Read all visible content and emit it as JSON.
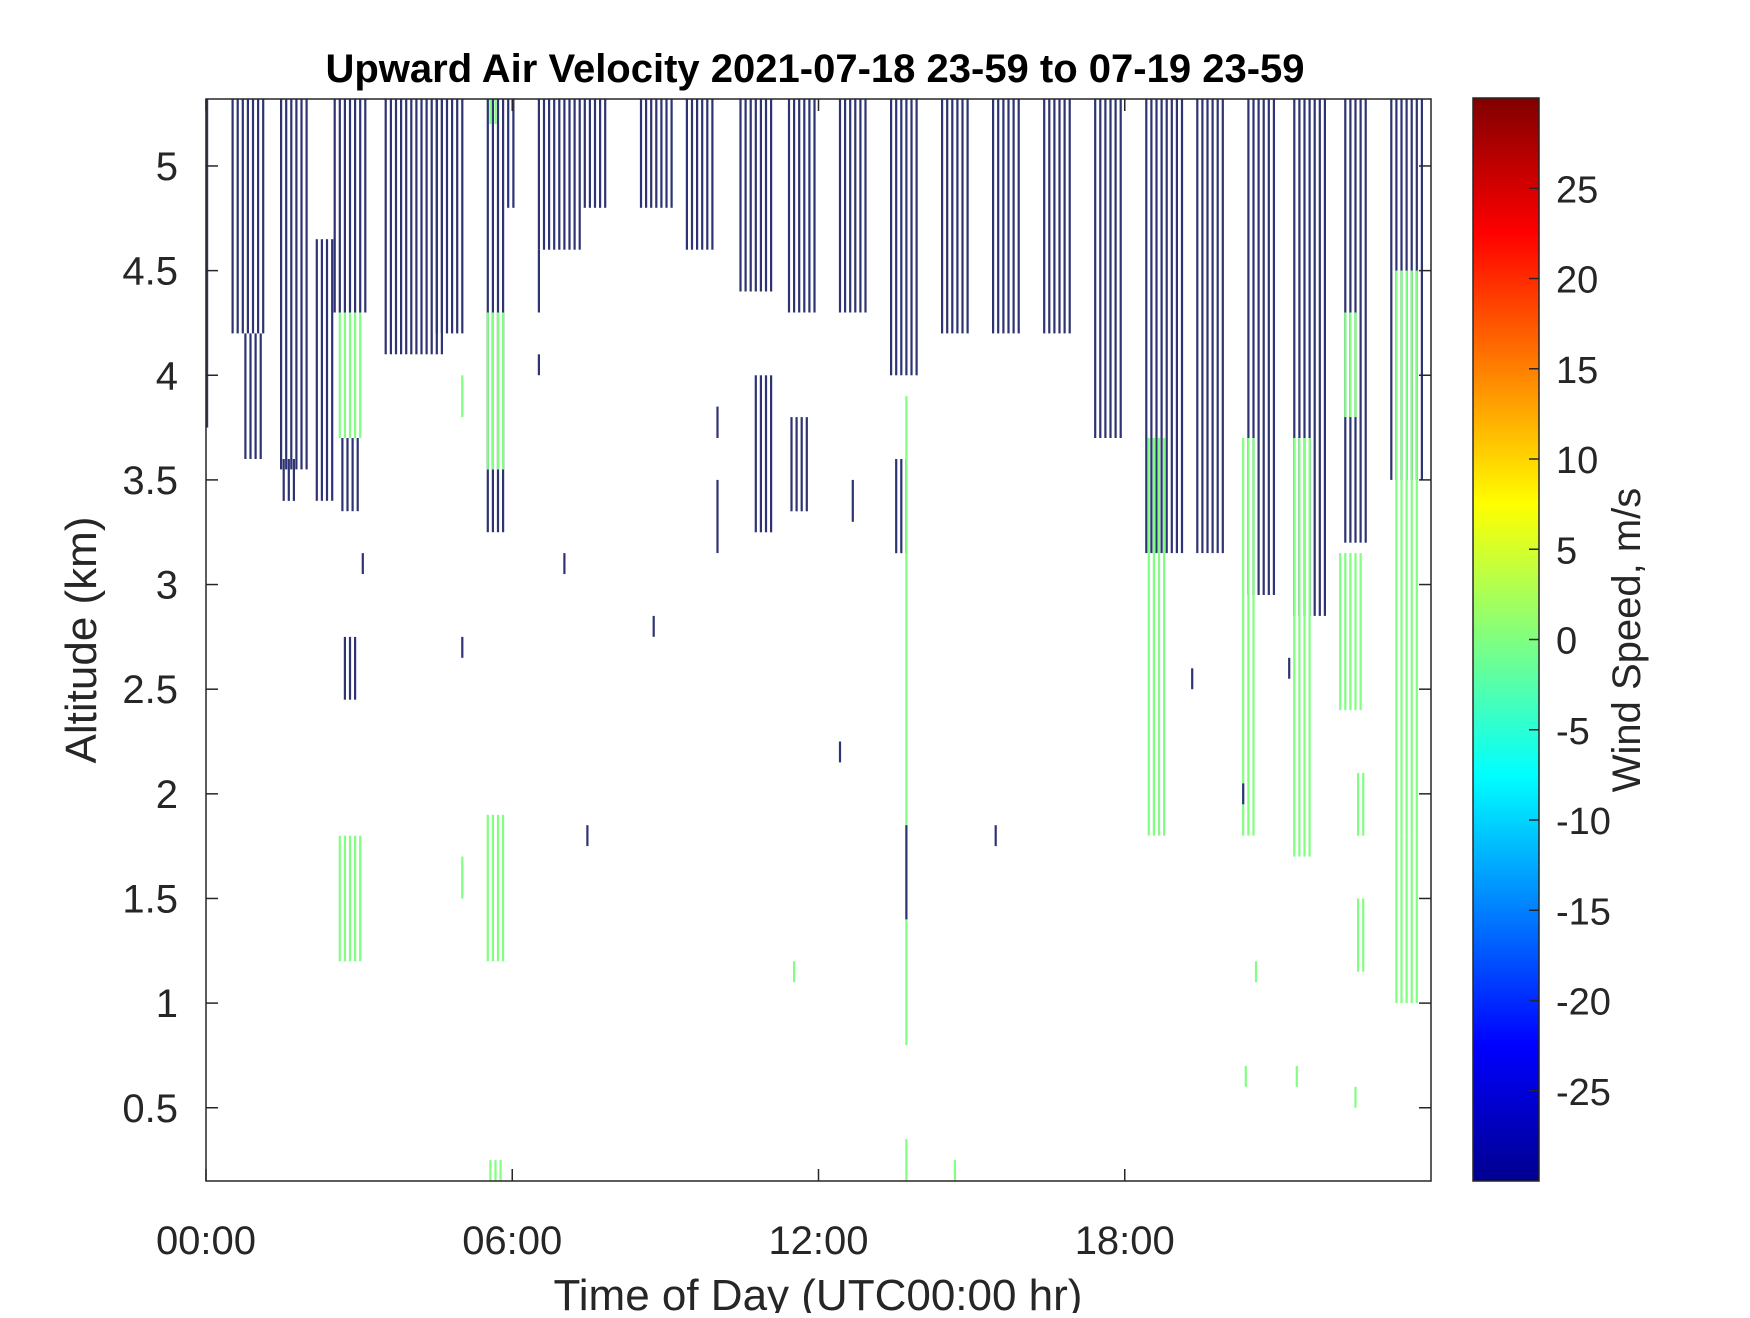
{
  "chart_data": {
    "type": "heatmap",
    "title": "Upward Air Velocity 2021-07-18 23-59 to 07-19 23-59",
    "xlabel": "Time of Day (UTC00:00 hr)",
    "ylabel": "Altitude (km)",
    "xlim": [
      0,
      24
    ],
    "ylim": [
      0.15,
      5.32
    ],
    "x_ticks": [
      {
        "value": 0,
        "label": "00:00"
      },
      {
        "value": 6,
        "label": "06:00"
      },
      {
        "value": 12,
        "label": "12:00"
      },
      {
        "value": 18,
        "label": "18:00"
      }
    ],
    "y_ticks": [
      {
        "value": 0.5,
        "label": "0.5"
      },
      {
        "value": 1,
        "label": "1"
      },
      {
        "value": 1.5,
        "label": "1.5"
      },
      {
        "value": 2,
        "label": "2"
      },
      {
        "value": 2.5,
        "label": "2.5"
      },
      {
        "value": 3,
        "label": "3"
      },
      {
        "value": 3.5,
        "label": "3.5"
      },
      {
        "value": 4,
        "label": "4"
      },
      {
        "value": 4.5,
        "label": "4.5"
      },
      {
        "value": 5,
        "label": "5"
      }
    ],
    "colorbar": {
      "label": "Wind Speed, m/s",
      "range": [
        -30,
        30
      ],
      "colormap": "jet",
      "ticks": [
        {
          "value": -25,
          "label": "-25"
        },
        {
          "value": -20,
          "label": "-20"
        },
        {
          "value": -15,
          "label": "-15"
        },
        {
          "value": -10,
          "label": "-10"
        },
        {
          "value": -5,
          "label": "-5"
        },
        {
          "value": 0,
          "label": "0"
        },
        {
          "value": 5,
          "label": "5"
        },
        {
          "value": 10,
          "label": "10"
        },
        {
          "value": 15,
          "label": "15"
        },
        {
          "value": 20,
          "label": "20"
        },
        {
          "value": 25,
          "label": "25"
        }
      ]
    },
    "grid": false,
    "cell_groups": [
      {
        "t0": 0.0,
        "t1": 0.05,
        "z0": 3.75,
        "z1": 5.32,
        "v": -29,
        "step": 0.1
      },
      {
        "t0": 0.5,
        "t1": 1.1,
        "z0": 4.2,
        "z1": 5.32,
        "v": -29,
        "step": 0.1
      },
      {
        "t0": 0.75,
        "t1": 1.05,
        "z0": 3.6,
        "z1": 4.2,
        "v": -29,
        "step": 0.1
      },
      {
        "t0": 1.45,
        "t1": 2.0,
        "z0": 3.55,
        "z1": 5.32,
        "v": -29,
        "step": 0.1
      },
      {
        "t0": 1.5,
        "t1": 1.75,
        "z0": 3.4,
        "z1": 3.6,
        "v": -29,
        "step": 0.1
      },
      {
        "t0": 2.15,
        "t1": 2.45,
        "z0": 3.4,
        "z1": 4.65,
        "v": -29,
        "step": 0.1
      },
      {
        "t0": 2.5,
        "t1": 3.1,
        "z0": 4.3,
        "z1": 5.32,
        "v": -29,
        "step": 0.1
      },
      {
        "t0": 2.65,
        "t1": 3.0,
        "z0": 3.35,
        "z1": 3.7,
        "v": -29,
        "step": 0.1
      },
      {
        "t0": 2.6,
        "t1": 3.0,
        "z0": 3.7,
        "z1": 4.3,
        "v": 0,
        "step": 0.1
      },
      {
        "t0": 2.6,
        "t1": 3.0,
        "z0": 1.2,
        "z1": 1.8,
        "v": 0,
        "step": 0.1
      },
      {
        "t0": 2.7,
        "t1": 2.9,
        "z0": 2.45,
        "z1": 2.75,
        "v": -29,
        "step": 0.1
      },
      {
        "t0": 3.5,
        "t1": 4.6,
        "z0": 4.1,
        "z1": 5.32,
        "v": -29,
        "step": 0.1
      },
      {
        "t0": 4.5,
        "t1": 5.05,
        "z0": 4.2,
        "z1": 5.32,
        "v": -29,
        "step": 0.1
      },
      {
        "t0": 5.5,
        "t1": 5.85,
        "z0": 3.25,
        "z1": 5.32,
        "v": -29,
        "step": 0.1
      },
      {
        "t0": 5.5,
        "t1": 5.85,
        "z0": 3.55,
        "z1": 4.3,
        "v": 0,
        "step": 0.1
      },
      {
        "t0": 5.5,
        "t1": 5.85,
        "z0": 1.2,
        "z1": 1.9,
        "v": 0,
        "step": 0.1
      },
      {
        "t0": 5.55,
        "t1": 5.7,
        "z0": 5.2,
        "z1": 5.32,
        "v": 0,
        "step": 0.1
      },
      {
        "t0": 5.55,
        "t1": 5.75,
        "z0": 0.15,
        "z1": 0.25,
        "v": 0,
        "step": 0.1
      },
      {
        "t0": 5.9,
        "t1": 6.05,
        "z0": 4.8,
        "z1": 5.32,
        "v": -29,
        "step": 0.1
      },
      {
        "t0": 6.5,
        "t1": 7.3,
        "z0": 4.6,
        "z1": 5.32,
        "v": -29,
        "step": 0.1
      },
      {
        "t0": 7.4,
        "t1": 7.85,
        "z0": 4.8,
        "z1": 5.32,
        "v": -29,
        "step": 0.1
      },
      {
        "t0": 8.5,
        "t1": 9.1,
        "z0": 4.8,
        "z1": 5.32,
        "v": -29,
        "step": 0.1
      },
      {
        "t0": 9.4,
        "t1": 9.95,
        "z0": 4.6,
        "z1": 5.32,
        "v": -29,
        "step": 0.1
      },
      {
        "t0": 10.45,
        "t1": 11.1,
        "z0": 4.4,
        "z1": 5.32,
        "v": -29,
        "step": 0.1
      },
      {
        "t0": 10.75,
        "t1": 11.05,
        "z0": 3.25,
        "z1": 4.0,
        "v": -29,
        "step": 0.1
      },
      {
        "t0": 11.4,
        "t1": 11.95,
        "z0": 4.3,
        "z1": 5.32,
        "v": -29,
        "step": 0.1
      },
      {
        "t0": 11.45,
        "t1": 11.75,
        "z0": 3.35,
        "z1": 3.8,
        "v": -29,
        "step": 0.1
      },
      {
        "t0": 12.4,
        "t1": 12.95,
        "z0": 4.3,
        "z1": 5.32,
        "v": -29,
        "step": 0.1
      },
      {
        "t0": 13.4,
        "t1": 13.95,
        "z0": 4.0,
        "z1": 5.32,
        "v": -29,
        "step": 0.1
      },
      {
        "t0": 13.5,
        "t1": 13.75,
        "z0": 3.15,
        "z1": 3.6,
        "v": -29,
        "step": 0.1
      },
      {
        "t0": 14.4,
        "t1": 14.95,
        "z0": 4.2,
        "z1": 5.32,
        "v": -29,
        "step": 0.1
      },
      {
        "t0": 15.4,
        "t1": 15.95,
        "z0": 4.2,
        "z1": 5.32,
        "v": -29,
        "step": 0.1
      },
      {
        "t0": 16.4,
        "t1": 16.95,
        "z0": 4.2,
        "z1": 5.32,
        "v": -29,
        "step": 0.1
      },
      {
        "t0": 17.4,
        "t1": 17.95,
        "z0": 3.7,
        "z1": 5.32,
        "v": -29,
        "step": 0.1
      },
      {
        "t0": 18.4,
        "t1": 19.1,
        "z0": 3.15,
        "z1": 5.32,
        "v": -29,
        "step": 0.1
      },
      {
        "t0": 18.45,
        "t1": 18.75,
        "z0": 1.8,
        "z1": 3.7,
        "v": 0,
        "step": 0.1
      },
      {
        "t0": 19.4,
        "t1": 19.95,
        "z0": 3.15,
        "z1": 5.32,
        "v": -29,
        "step": 0.1
      },
      {
        "t0": 20.4,
        "t1": 20.95,
        "z0": 2.95,
        "z1": 5.32,
        "v": -29,
        "step": 0.1
      },
      {
        "t0": 20.3,
        "t1": 20.55,
        "z0": 1.8,
        "z1": 3.7,
        "v": 0,
        "step": 0.1
      },
      {
        "t0": 21.3,
        "t1": 21.95,
        "z0": 2.85,
        "z1": 5.32,
        "v": -29,
        "step": 0.1
      },
      {
        "t0": 21.3,
        "t1": 21.65,
        "z0": 1.7,
        "z1": 3.7,
        "v": 0,
        "step": 0.1
      },
      {
        "t0": 22.3,
        "t1": 22.75,
        "z0": 3.2,
        "z1": 5.32,
        "v": -29,
        "step": 0.1
      },
      {
        "t0": 22.2,
        "t1": 22.6,
        "z0": 2.4,
        "z1": 3.15,
        "v": 0,
        "step": 0.1
      },
      {
        "t0": 22.3,
        "t1": 22.55,
        "z0": 3.8,
        "z1": 4.3,
        "v": 0,
        "step": 0.1
      },
      {
        "t0": 22.55,
        "t1": 22.65,
        "z0": 1.8,
        "z1": 2.1,
        "v": 0,
        "step": 0.1
      },
      {
        "t0": 22.55,
        "t1": 22.7,
        "z0": 1.15,
        "z1": 1.5,
        "v": 0,
        "step": 0.1
      },
      {
        "t0": 23.2,
        "t1": 23.85,
        "z0": 3.5,
        "z1": 5.32,
        "v": -29,
        "step": 0.1
      },
      {
        "t0": 23.3,
        "t1": 23.7,
        "z0": 1.8,
        "z1": 4.5,
        "v": 0,
        "step": 0.1
      },
      {
        "t0": 23.3,
        "t1": 23.7,
        "z0": 1.0,
        "z1": 1.8,
        "v": 0,
        "step": 0.1
      },
      {
        "t0": 13.7,
        "t1": 13.76,
        "z0": 0.8,
        "z1": 3.9,
        "v": 0,
        "step": 0.1
      },
      {
        "t0": 13.7,
        "t1": 13.76,
        "z0": 0.15,
        "z1": 0.35,
        "v": 0,
        "step": 0.1
      },
      {
        "t0": 14.65,
        "t1": 14.7,
        "z0": 0.15,
        "z1": 0.25,
        "v": 0,
        "step": 0.1
      },
      {
        "t0": 5.0,
        "t1": 5.05,
        "z0": 1.5,
        "z1": 1.7,
        "v": 0,
        "step": 0.1
      },
      {
        "t0": 5.0,
        "t1": 5.05,
        "z0": 3.8,
        "z1": 4.0,
        "v": 0,
        "step": 0.1
      },
      {
        "t0": 11.5,
        "t1": 11.55,
        "z0": 1.1,
        "z1": 1.2,
        "v": 0,
        "step": 0.1
      },
      {
        "t0": 20.55,
        "t1": 20.6,
        "z0": 1.1,
        "z1": 1.2,
        "v": 0,
        "step": 0.1
      },
      {
        "t0": 21.35,
        "t1": 21.4,
        "z0": 0.6,
        "z1": 0.7,
        "v": 0,
        "step": 0.1
      },
      {
        "t0": 20.35,
        "t1": 20.4,
        "z0": 0.6,
        "z1": 0.7,
        "v": 0,
        "step": 0.1
      },
      {
        "t0": 22.5,
        "t1": 22.55,
        "z0": 0.5,
        "z1": 0.6,
        "v": 0,
        "step": 0.1
      },
      {
        "t0": 3.05,
        "t1": 3.1,
        "z0": 3.05,
        "z1": 3.15,
        "v": -29,
        "step": 0.1
      },
      {
        "t0": 5.0,
        "t1": 5.05,
        "z0": 2.65,
        "z1": 2.75,
        "v": -29,
        "step": 0.1
      },
      {
        "t0": 7.0,
        "t1": 7.05,
        "z0": 3.05,
        "z1": 3.15,
        "v": -29,
        "step": 0.1
      },
      {
        "t0": 8.75,
        "t1": 8.8,
        "z0": 2.75,
        "z1": 2.85,
        "v": -29,
        "step": 0.1
      },
      {
        "t0": 7.45,
        "t1": 7.5,
        "z0": 1.75,
        "z1": 1.85,
        "v": -29,
        "step": 0.1
      },
      {
        "t0": 12.4,
        "t1": 12.45,
        "z0": 2.15,
        "z1": 2.25,
        "v": -29,
        "step": 0.1
      },
      {
        "t0": 13.7,
        "t1": 13.76,
        "z0": 1.4,
        "z1": 1.85,
        "v": -29,
        "step": 0.1
      },
      {
        "t0": 15.45,
        "t1": 15.5,
        "z0": 1.75,
        "z1": 1.85,
        "v": -29,
        "step": 0.1
      },
      {
        "t0": 6.5,
        "t1": 6.55,
        "z0": 4.0,
        "z1": 4.1,
        "v": -29,
        "step": 0.1
      },
      {
        "t0": 6.5,
        "t1": 6.55,
        "z0": 4.3,
        "z1": 4.6,
        "v": -29,
        "step": 0.1
      },
      {
        "t0": 10.0,
        "t1": 10.05,
        "z0": 3.15,
        "z1": 3.5,
        "v": -29,
        "step": 0.1
      },
      {
        "t0": 10.0,
        "t1": 10.05,
        "z0": 3.7,
        "z1": 3.85,
        "v": -29,
        "step": 0.1
      },
      {
        "t0": 12.65,
        "t1": 12.7,
        "z0": 3.3,
        "z1": 3.5,
        "v": -29,
        "step": 0.1
      },
      {
        "t0": 19.3,
        "t1": 19.35,
        "z0": 2.5,
        "z1": 2.6,
        "v": -29,
        "step": 0.1
      },
      {
        "t0": 20.3,
        "t1": 20.35,
        "z0": 1.95,
        "z1": 2.05,
        "v": -29,
        "step": 0.1
      },
      {
        "t0": 21.2,
        "t1": 21.25,
        "z0": 2.55,
        "z1": 2.65,
        "v": -29,
        "step": 0.1
      }
    ]
  }
}
